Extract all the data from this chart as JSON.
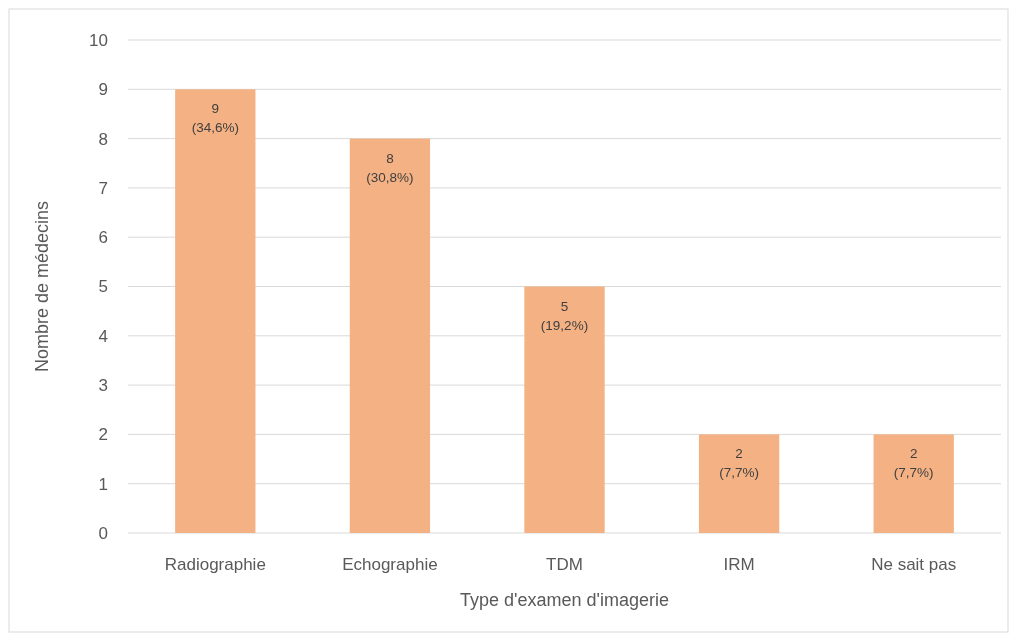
{
  "chart_data": {
    "type": "bar",
    "xlabel": "Type d'examen d'imagerie",
    "ylabel": "Nombre de médecins",
    "categories": [
      "Radiographie",
      "Echographie",
      "TDM",
      "IRM",
      "Ne sait pas"
    ],
    "values": [
      9,
      8,
      5,
      2,
      2
    ],
    "value_labels": [
      "9\n(34,6%)",
      "8\n(30,8%)",
      "5\n(19,2%)",
      "2\n(7,7%)",
      "2\n(7,7%)"
    ],
    "color": "#f4b183",
    "ylim": [
      0,
      10
    ],
    "yticks": [
      0,
      1,
      2,
      3,
      4,
      5,
      6,
      7,
      8,
      9,
      10
    ],
    "grid": "y"
  }
}
